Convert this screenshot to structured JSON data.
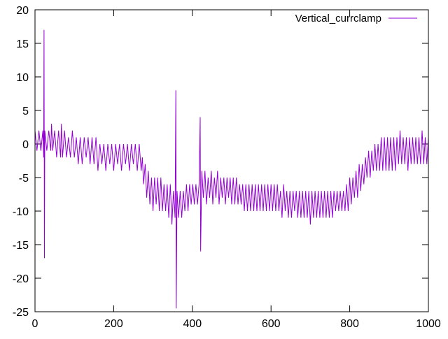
{
  "chart_data": {
    "type": "line",
    "title": "",
    "xlabel": "",
    "ylabel": "",
    "xlim": [
      0,
      1000
    ],
    "ylim": [
      -25,
      20
    ],
    "xticks": [
      0,
      200,
      400,
      600,
      800,
      1000
    ],
    "yticks": [
      -25,
      -20,
      -15,
      -10,
      -5,
      0,
      5,
      10,
      15,
      20
    ],
    "grid": false,
    "legend_position": "top-right",
    "series": [
      {
        "name": "Vertical_currclamp",
        "color": "#9400d3",
        "points": [
          [
            0,
            2
          ],
          [
            5,
            -1
          ],
          [
            10,
            2
          ],
          [
            15,
            -1
          ],
          [
            20,
            2
          ],
          [
            22,
            -2
          ],
          [
            23,
            17
          ],
          [
            24,
            -17
          ],
          [
            25,
            2
          ],
          [
            30,
            -1
          ],
          [
            35,
            2
          ],
          [
            40,
            -1
          ],
          [
            42,
            3
          ],
          [
            45,
            -1
          ],
          [
            50,
            2
          ],
          [
            55,
            -2
          ],
          [
            60,
            2
          ],
          [
            65,
            -2
          ],
          [
            67,
            3
          ],
          [
            70,
            -2
          ],
          [
            75,
            2
          ],
          [
            80,
            -2
          ],
          [
            85,
            1
          ],
          [
            90,
            -2
          ],
          [
            95,
            2
          ],
          [
            100,
            -2
          ],
          [
            105,
            1
          ],
          [
            110,
            -3
          ],
          [
            115,
            1
          ],
          [
            120,
            -3
          ],
          [
            125,
            1
          ],
          [
            130,
            -2
          ],
          [
            135,
            1
          ],
          [
            140,
            -3
          ],
          [
            145,
            1
          ],
          [
            150,
            -3
          ],
          [
            155,
            1
          ],
          [
            160,
            -4
          ],
          [
            165,
            0
          ],
          [
            170,
            -3
          ],
          [
            175,
            0
          ],
          [
            180,
            -4
          ],
          [
            185,
            0
          ],
          [
            190,
            -3
          ],
          [
            195,
            0
          ],
          [
            200,
            -4
          ],
          [
            205,
            0
          ],
          [
            210,
            -3
          ],
          [
            215,
            0
          ],
          [
            220,
            -4
          ],
          [
            225,
            0
          ],
          [
            230,
            -3
          ],
          [
            235,
            0
          ],
          [
            240,
            -4
          ],
          [
            245,
            0
          ],
          [
            250,
            -3
          ],
          [
            255,
            0
          ],
          [
            260,
            -4
          ],
          [
            265,
            0
          ],
          [
            270,
            -4
          ],
          [
            273,
            -2
          ],
          [
            276,
            -6
          ],
          [
            280,
            -3
          ],
          [
            284,
            -8
          ],
          [
            288,
            -4
          ],
          [
            292,
            -9
          ],
          [
            296,
            -5
          ],
          [
            300,
            -10
          ],
          [
            304,
            -5
          ],
          [
            308,
            -9
          ],
          [
            312,
            -5
          ],
          [
            316,
            -10
          ],
          [
            320,
            -5
          ],
          [
            324,
            -10
          ],
          [
            328,
            -6
          ],
          [
            332,
            -10
          ],
          [
            336,
            -6
          ],
          [
            340,
            -11
          ],
          [
            344,
            -6
          ],
          [
            348,
            -12
          ],
          [
            352,
            -7
          ],
          [
            356,
            -11
          ],
          [
            358,
            8
          ],
          [
            359,
            -24.5
          ],
          [
            361,
            -7
          ],
          [
            365,
            -11
          ],
          [
            369,
            -7
          ],
          [
            373,
            -11
          ],
          [
            377,
            -7
          ],
          [
            381,
            -10
          ],
          [
            385,
            -6
          ],
          [
            389,
            -10
          ],
          [
            393,
            -6
          ],
          [
            397,
            -9
          ],
          [
            401,
            -6
          ],
          [
            405,
            -9
          ],
          [
            409,
            -6
          ],
          [
            413,
            -9
          ],
          [
            417,
            -6
          ],
          [
            420,
            4
          ],
          [
            421,
            -16
          ],
          [
            424,
            -4
          ],
          [
            428,
            -8
          ],
          [
            432,
            -4
          ],
          [
            436,
            -9
          ],
          [
            440,
            -5
          ],
          [
            444,
            -8
          ],
          [
            448,
            -4
          ],
          [
            452,
            -9
          ],
          [
            456,
            -5
          ],
          [
            460,
            -8
          ],
          [
            464,
            -4
          ],
          [
            468,
            -9
          ],
          [
            472,
            -5
          ],
          [
            476,
            -8
          ],
          [
            480,
            -5
          ],
          [
            484,
            -9
          ],
          [
            488,
            -5
          ],
          [
            492,
            -8
          ],
          [
            496,
            -5
          ],
          [
            500,
            -9
          ],
          [
            504,
            -5
          ],
          [
            508,
            -9
          ],
          [
            512,
            -5
          ],
          [
            516,
            -9
          ],
          [
            520,
            -6
          ],
          [
            524,
            -9
          ],
          [
            528,
            -6
          ],
          [
            532,
            -10
          ],
          [
            536,
            -6
          ],
          [
            540,
            -10
          ],
          [
            544,
            -6
          ],
          [
            548,
            -10
          ],
          [
            552,
            -6
          ],
          [
            556,
            -10
          ],
          [
            560,
            -6
          ],
          [
            564,
            -10
          ],
          [
            568,
            -6
          ],
          [
            572,
            -10
          ],
          [
            576,
            -6
          ],
          [
            580,
            -10
          ],
          [
            584,
            -6
          ],
          [
            588,
            -10
          ],
          [
            592,
            -6
          ],
          [
            596,
            -10
          ],
          [
            600,
            -6
          ],
          [
            604,
            -10
          ],
          [
            608,
            -6
          ],
          [
            612,
            -10
          ],
          [
            616,
            -6
          ],
          [
            620,
            -10
          ],
          [
            624,
            -7
          ],
          [
            628,
            -11
          ],
          [
            632,
            -6
          ],
          [
            636,
            -10
          ],
          [
            640,
            -7
          ],
          [
            644,
            -11
          ],
          [
            648,
            -7
          ],
          [
            652,
            -11
          ],
          [
            656,
            -7
          ],
          [
            660,
            -10
          ],
          [
            664,
            -7
          ],
          [
            668,
            -11
          ],
          [
            672,
            -7
          ],
          [
            676,
            -11
          ],
          [
            680,
            -7
          ],
          [
            684,
            -11
          ],
          [
            688,
            -7
          ],
          [
            692,
            -11
          ],
          [
            696,
            -7
          ],
          [
            700,
            -12
          ],
          [
            704,
            -7
          ],
          [
            708,
            -11
          ],
          [
            712,
            -7
          ],
          [
            716,
            -11
          ],
          [
            720,
            -7
          ],
          [
            724,
            -11
          ],
          [
            728,
            -7
          ],
          [
            732,
            -11
          ],
          [
            736,
            -7
          ],
          [
            740,
            -11
          ],
          [
            744,
            -7
          ],
          [
            748,
            -11
          ],
          [
            752,
            -7
          ],
          [
            756,
            -11
          ],
          [
            760,
            -7
          ],
          [
            764,
            -10
          ],
          [
            768,
            -7
          ],
          [
            772,
            -10
          ],
          [
            776,
            -7
          ],
          [
            780,
            -10
          ],
          [
            784,
            -7
          ],
          [
            788,
            -10
          ],
          [
            792,
            -6
          ],
          [
            796,
            -10
          ],
          [
            800,
            -5
          ],
          [
            804,
            -9
          ],
          [
            808,
            -5
          ],
          [
            812,
            -8
          ],
          [
            816,
            -4
          ],
          [
            820,
            -8
          ],
          [
            824,
            -3
          ],
          [
            828,
            -7
          ],
          [
            832,
            -3
          ],
          [
            836,
            -6
          ],
          [
            840,
            -2
          ],
          [
            844,
            -5
          ],
          [
            848,
            -1
          ],
          [
            852,
            -5
          ],
          [
            856,
            -1
          ],
          [
            860,
            -4
          ],
          [
            864,
            0
          ],
          [
            868,
            -4
          ],
          [
            872,
            0
          ],
          [
            876,
            -4
          ],
          [
            880,
            1
          ],
          [
            884,
            -4
          ],
          [
            888,
            1
          ],
          [
            892,
            -4
          ],
          [
            896,
            1
          ],
          [
            900,
            -4
          ],
          [
            904,
            1
          ],
          [
            908,
            -4
          ],
          [
            912,
            1
          ],
          [
            916,
            -4
          ],
          [
            920,
            1
          ],
          [
            924,
            -3
          ],
          [
            928,
            2
          ],
          [
            932,
            -3
          ],
          [
            936,
            1
          ],
          [
            940,
            -3
          ],
          [
            944,
            1
          ],
          [
            948,
            -4
          ],
          [
            952,
            1
          ],
          [
            956,
            -3
          ],
          [
            960,
            1
          ],
          [
            964,
            -3
          ],
          [
            968,
            1
          ],
          [
            972,
            -3
          ],
          [
            976,
            1
          ],
          [
            980,
            -3
          ],
          [
            984,
            2
          ],
          [
            988,
            -3
          ],
          [
            992,
            1
          ],
          [
            996,
            -3
          ],
          [
            1000,
            1
          ]
        ]
      }
    ]
  }
}
